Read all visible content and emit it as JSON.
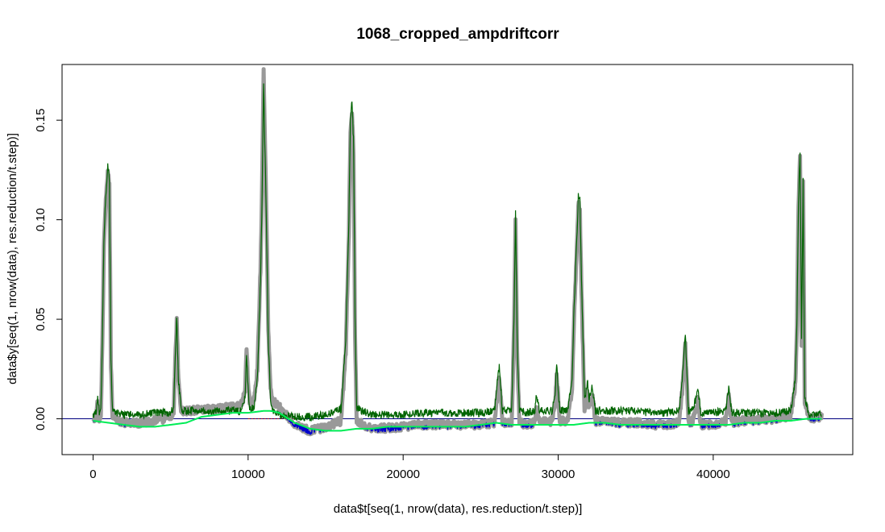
{
  "chart_data": {
    "type": "line",
    "title": "1068_cropped_ampdriftcorr",
    "xlabel": "data$t[seq(1, nrow(data), res.reduction/t.step)]",
    "ylabel": "data$y[seq(1, nrow(data), res.reduction/t.step)]",
    "xlim": [
      -2000,
      49000
    ],
    "ylim": [
      -0.018,
      0.178
    ],
    "x_ticks": [
      0,
      10000,
      20000,
      30000,
      40000
    ],
    "x_tick_labels": [
      "0",
      "10000",
      "20000",
      "30000",
      "40000"
    ],
    "y_ticks": [
      0.0,
      0.05,
      0.1,
      0.15
    ],
    "y_tick_labels": [
      "0.00",
      "0.05",
      "0.10",
      "0.15"
    ],
    "grid": false,
    "legend": "none",
    "colors": {
      "raw_gray": "#999999",
      "corrected_green": "#006400",
      "baseline_green": "#00ee55",
      "negative_blue": "#0000cc",
      "zero_line": "#000080"
    },
    "baseline": {
      "x": [
        0,
        1000,
        2000,
        3000,
        4000,
        5000,
        6000,
        7000,
        8000,
        9000,
        10000,
        11000,
        11500,
        12000,
        13000,
        14000,
        15000,
        16000,
        17000,
        18000,
        19000,
        20000,
        21000,
        22000,
        23000,
        24000,
        25000,
        26000,
        27000,
        28000,
        29000,
        30000,
        31000,
        32000,
        33000,
        34000,
        35000,
        36000,
        37000,
        38000,
        39000,
        40000,
        41000,
        42000,
        43000,
        44000,
        45000,
        46000,
        47000
      ],
      "y": [
        -0.001,
        -0.002,
        -0.003,
        -0.004,
        -0.004,
        -0.003,
        -0.002,
        0.001,
        0.002,
        0.003,
        0.003,
        0.004,
        0.004,
        0.003,
        -0.002,
        -0.005,
        -0.006,
        -0.006,
        -0.005,
        -0.005,
        -0.004,
        -0.004,
        -0.004,
        -0.004,
        -0.004,
        -0.004,
        -0.003,
        -0.002,
        -0.003,
        -0.003,
        -0.003,
        -0.003,
        -0.003,
        -0.002,
        -0.002,
        -0.003,
        -0.003,
        -0.003,
        -0.003,
        -0.003,
        -0.003,
        -0.003,
        -0.003,
        -0.002,
        -0.002,
        -0.001,
        -0.001,
        0.0,
        0.0
      ]
    },
    "signal": {
      "x": [
        0,
        200,
        300,
        400,
        500,
        600,
        700,
        800,
        900,
        950,
        1000,
        1050,
        1100,
        1150,
        1250,
        1400,
        2000,
        3000,
        4000,
        5000,
        5200,
        5300,
        5400,
        5500,
        5700,
        6000,
        7000,
        8000,
        9000,
        9500,
        9800,
        9900,
        10000,
        10100,
        10400,
        10600,
        10800,
        10900,
        11000,
        11100,
        11200,
        11300,
        11450,
        11600,
        12000,
        13000,
        14000,
        15000,
        16000,
        16300,
        16500,
        16600,
        16700,
        16800,
        16900,
        17000,
        18000,
        19000,
        20000,
        21000,
        22000,
        23000,
        24000,
        25000,
        25900,
        26100,
        26200,
        26400,
        27000,
        27150,
        27250,
        27350,
        27500,
        28000,
        28500,
        28600,
        28800,
        29000,
        29600,
        29800,
        29900,
        30100,
        30600,
        30900,
        31000,
        31100,
        31200,
        31300,
        31400,
        31500,
        31700,
        31900,
        32000,
        32200,
        32400,
        33000,
        34000,
        35000,
        36000,
        37000,
        37800,
        38000,
        38200,
        38400,
        38600,
        38900,
        39000,
        39200,
        39500,
        40000,
        40800,
        41000,
        41200,
        41500,
        42000,
        43000,
        44000,
        45000,
        45300,
        45400,
        45500,
        45600,
        45700,
        45800,
        45900,
        46200,
        47000
      ],
      "y": [
        0.002,
        0.003,
        0.012,
        0.003,
        0.005,
        0.04,
        0.09,
        0.11,
        0.12,
        0.127,
        0.124,
        0.12,
        0.08,
        0.03,
        0.005,
        0.003,
        0.002,
        0.002,
        0.003,
        0.003,
        0.006,
        0.03,
        0.052,
        0.02,
        0.004,
        0.004,
        0.004,
        0.004,
        0.004,
        0.004,
        0.01,
        0.032,
        0.015,
        0.004,
        0.006,
        0.02,
        0.07,
        0.11,
        0.17,
        0.13,
        0.09,
        0.04,
        0.01,
        0.004,
        0.002,
        0.001,
        0.001,
        0.002,
        0.005,
        0.04,
        0.1,
        0.15,
        0.16,
        0.14,
        0.05,
        0.005,
        0.002,
        0.002,
        0.002,
        0.003,
        0.003,
        0.003,
        0.003,
        0.003,
        0.004,
        0.02,
        0.027,
        0.004,
        0.004,
        0.05,
        0.105,
        0.04,
        0.004,
        0.003,
        0.004,
        0.012,
        0.004,
        0.004,
        0.004,
        0.012,
        0.028,
        0.004,
        0.004,
        0.02,
        0.05,
        0.07,
        0.09,
        0.113,
        0.11,
        0.07,
        0.01,
        0.018,
        0.01,
        0.017,
        0.004,
        0.004,
        0.004,
        0.004,
        0.003,
        0.003,
        0.004,
        0.02,
        0.043,
        0.004,
        0.004,
        0.01,
        0.016,
        0.003,
        0.003,
        0.003,
        0.004,
        0.016,
        0.003,
        0.003,
        0.003,
        0.003,
        0.003,
        0.004,
        0.02,
        0.05,
        0.11,
        0.135,
        0.04,
        0.12,
        0.01,
        0.002,
        0.002
      ]
    },
    "raw_offset": {
      "x": [
        0,
        2000,
        4000,
        6000,
        8000,
        10000,
        11000,
        12000,
        13000,
        14000,
        16000,
        18000,
        20000,
        22000,
        24000,
        26000,
        28000,
        30000,
        32000,
        34000,
        36000,
        38000,
        40000,
        42000,
        44000,
        46000,
        47000
      ],
      "y": [
        -0.002,
        -0.004,
        -0.004,
        0.0,
        0.001,
        0.003,
        0.006,
        0.004,
        -0.004,
        -0.007,
        -0.006,
        -0.007,
        -0.006,
        -0.006,
        -0.006,
        -0.006,
        -0.006,
        -0.005,
        -0.005,
        -0.006,
        -0.006,
        -0.006,
        -0.006,
        -0.004,
        -0.003,
        -0.002,
        -0.001
      ]
    }
  }
}
